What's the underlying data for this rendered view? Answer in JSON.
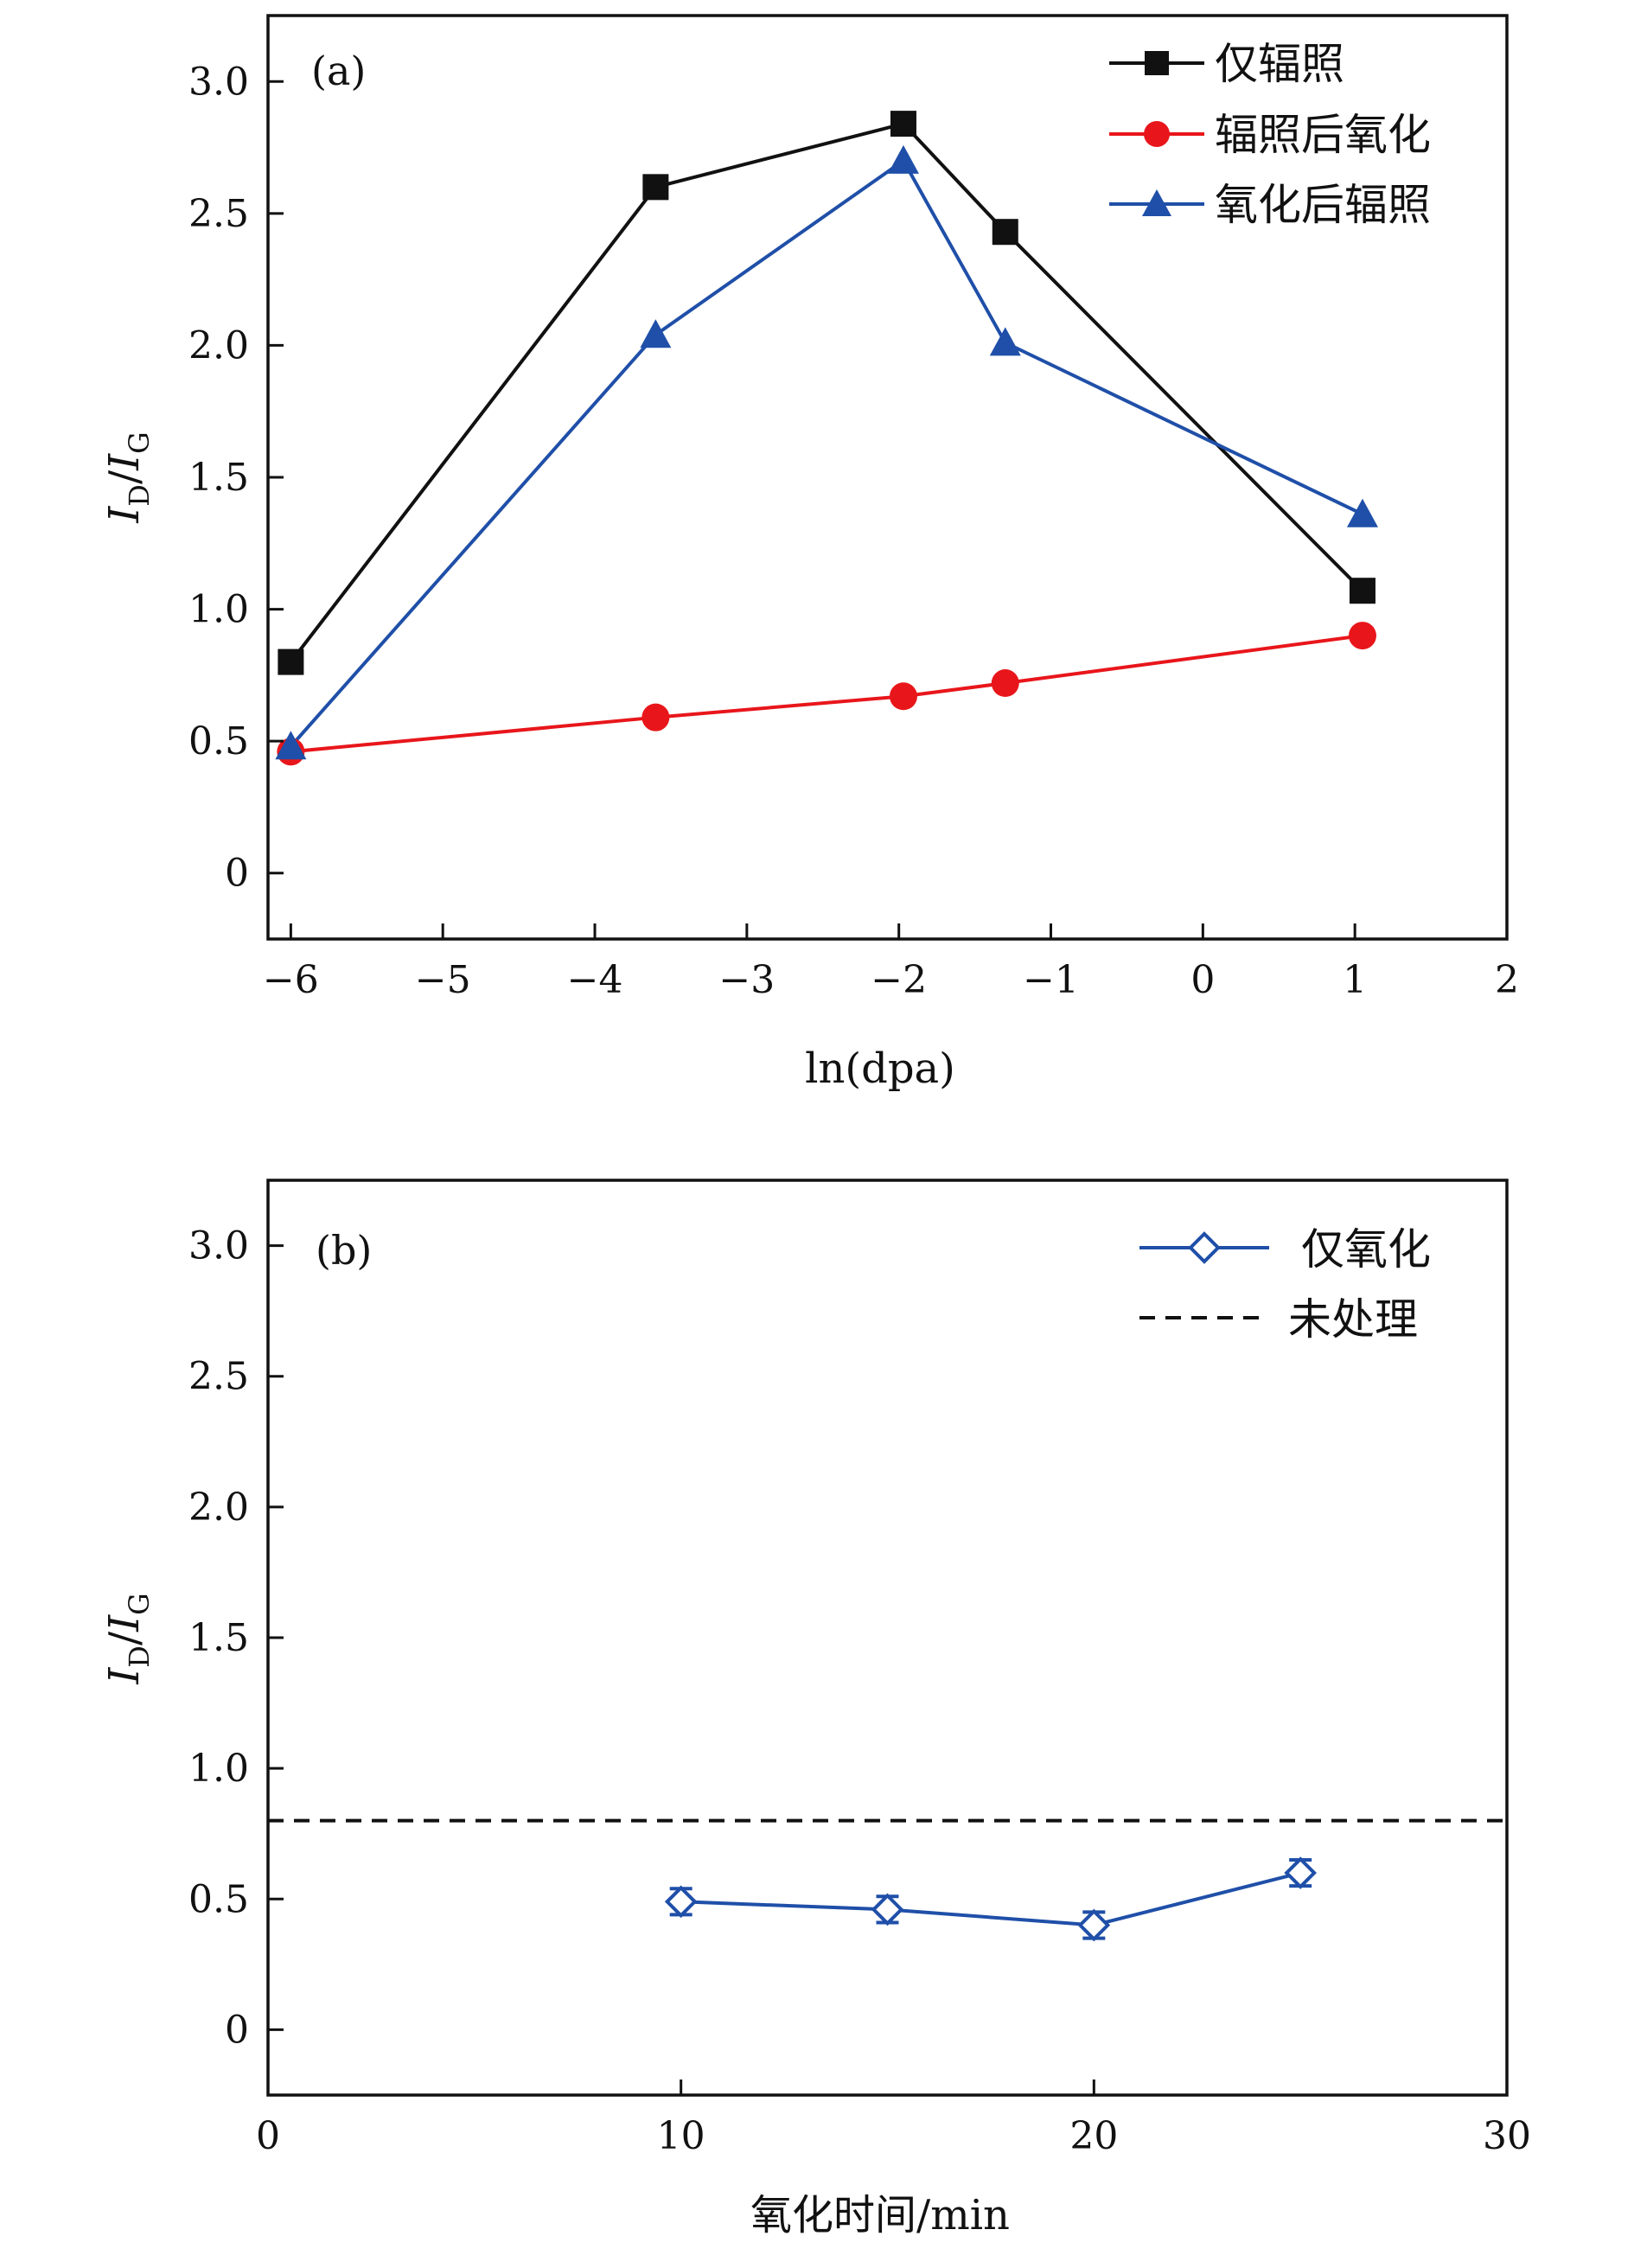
{
  "chart_data": [
    {
      "type": "line",
      "panel_label": "(a)",
      "xlabel": "ln(dpa)",
      "ylabel": "I_D/I_G",
      "ylabel_main": "I",
      "ylabel_sub_1": "D",
      "ylabel_sep": "/",
      "ylabel_sub_2": "G",
      "xlim": [
        -6.15,
        2
      ],
      "ylim": [
        -0.25,
        3.25
      ],
      "xticks": [
        -6,
        -5,
        -4,
        -3,
        -2,
        -1,
        0,
        1,
        2
      ],
      "xtick_labels": [
        "−6",
        "−5",
        "−4",
        "−3",
        "−2",
        "−1",
        "0",
        "1",
        "2"
      ],
      "yticks": [
        0,
        0.5,
        1.0,
        1.5,
        2.0,
        2.5,
        3.0
      ],
      "ytick_labels": [
        "0",
        "0.5",
        "1.0",
        "1.5",
        "2.0",
        "2.5",
        "3.0"
      ],
      "grid": false,
      "legend_position": "top-right",
      "series": [
        {
          "name": "仅辐照",
          "color": "#111111",
          "marker": "square",
          "x": [
            -6.0,
            -3.6,
            -1.97,
            -1.3,
            1.05
          ],
          "y": [
            0.8,
            2.6,
            2.84,
            2.43,
            1.07
          ]
        },
        {
          "name": "辐照后氧化",
          "color": "#e8161b",
          "marker": "circle",
          "x": [
            -6.0,
            -3.6,
            -1.97,
            -1.3,
            1.05
          ],
          "y": [
            0.46,
            0.59,
            0.67,
            0.72,
            0.9
          ]
        },
        {
          "name": "氧化后辐照",
          "color": "#1f4fa8",
          "marker": "triangle",
          "x": [
            -6.0,
            -3.6,
            -1.97,
            -1.3,
            1.05
          ],
          "y": [
            0.48,
            2.04,
            2.7,
            2.01,
            1.36
          ]
        }
      ]
    },
    {
      "type": "line",
      "panel_label": "(b)",
      "xlabel": "氧化时间/min",
      "ylabel": "I_D/I_G",
      "ylabel_main": "I",
      "ylabel_sub_1": "D",
      "ylabel_sep": "/",
      "ylabel_sub_2": "G",
      "xlim": [
        0,
        30
      ],
      "ylim": [
        -0.25,
        3.25
      ],
      "xticks": [
        0,
        10,
        20,
        30
      ],
      "xtick_labels": [
        "0",
        "10",
        "20",
        "30"
      ],
      "yticks": [
        0,
        0.5,
        1.0,
        1.5,
        2.0,
        2.5,
        3.0
      ],
      "ytick_labels": [
        "0",
        "0.5",
        "1.0",
        "1.5",
        "2.0",
        "2.5",
        "3.0"
      ],
      "grid": false,
      "legend_position": "top-right",
      "series": [
        {
          "name": "仅氧化",
          "color": "#1f4fa8",
          "marker": "diamond-open",
          "x": [
            10,
            15,
            20,
            25
          ],
          "y": [
            0.49,
            0.46,
            0.4,
            0.6
          ],
          "error": [
            0.05,
            0.05,
            0.05,
            0.05
          ]
        }
      ],
      "reference_line": {
        "name": "未处理",
        "y": 0.8,
        "color": "#111111",
        "style": "dashed"
      }
    }
  ]
}
